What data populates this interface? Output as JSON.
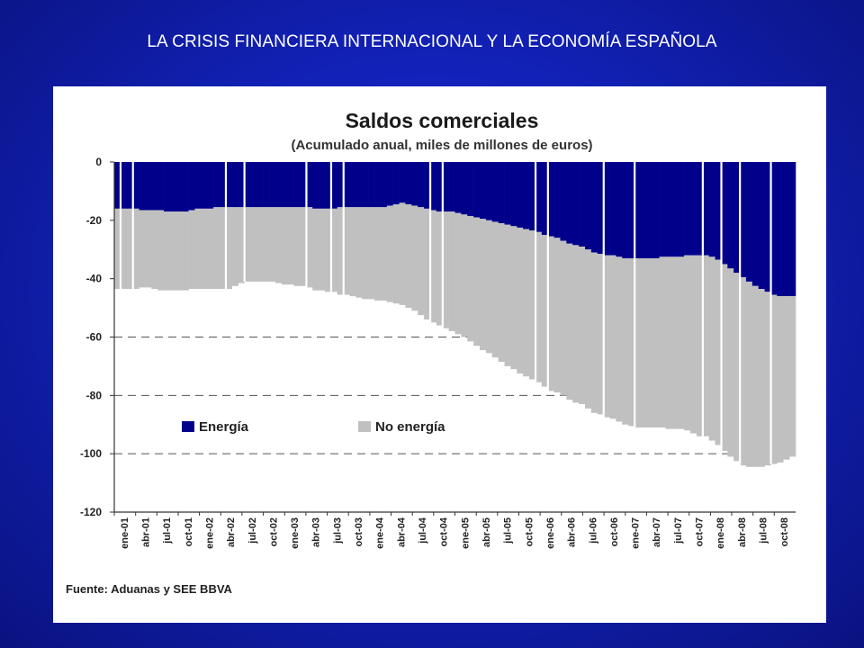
{
  "slide": {
    "title": "LA CRISIS FINANCIERA INTERNACIONAL  Y LA ECONOMÍA ESPAÑOLA"
  },
  "chart_data": {
    "type": "bar",
    "stacked": true,
    "title": "Saldos comerciales",
    "subtitle": "(Acumulado anual, miles de millones de euros)",
    "source": "Fuente: Aduanas y SEE BBVA",
    "ylim": [
      -120,
      0
    ],
    "yticks": [
      0,
      -20,
      -40,
      -60,
      -80,
      -100,
      -120
    ],
    "grid": "dashed at -60, -80, -100",
    "legend_position": "inside-lower-left",
    "colors": {
      "energy": "#00008b",
      "non_energy": "#c0c0c0",
      "separator": "#ffffff"
    },
    "xtick_labels": [
      "ene-01",
      "abr-01",
      "jul-01",
      "oct-01",
      "ene-02",
      "abr-02",
      "jul-02",
      "oct-02",
      "ene-03",
      "abr-03",
      "jul-03",
      "oct-03",
      "ene-04",
      "abr-04",
      "jul-04",
      "oct-04",
      "ene-05",
      "abr-05",
      "jul-05",
      "oct-05",
      "ene-06",
      "abr-06",
      "jul-06",
      "oct-06",
      "ene-07",
      "abr-07",
      "jul-07",
      "oct-07",
      "ene-08",
      "abr-08",
      "jul-08",
      "oct-08"
    ],
    "series": [
      {
        "name": "Energía",
        "values": [
          -16,
          -16,
          -16,
          -16,
          -16.5,
          -16.5,
          -16.5,
          -16.5,
          -17,
          -17,
          -17,
          -17,
          -16.5,
          -16,
          -16,
          -16,
          -15.5,
          -15.5,
          -15.5,
          -15.5,
          -15.5,
          -15.5,
          -15.5,
          -15.5,
          -15.5,
          -15.5,
          -15.5,
          -15.5,
          -15.5,
          -15.5,
          -15.5,
          -15.5,
          -16,
          -16,
          -16,
          -16,
          -15.5,
          -15.5,
          -15.5,
          -15.5,
          -15.5,
          -15.5,
          -15.5,
          -15.5,
          -15,
          -14.5,
          -14,
          -14.5,
          -15,
          -15.5,
          -16,
          -16.5,
          -17,
          -17,
          -17,
          -17.5,
          -18,
          -18.5,
          -19,
          -19.5,
          -20,
          -20.5,
          -21,
          -21.5,
          -22,
          -22.5,
          -23,
          -23.5,
          -24,
          -25,
          -25.5,
          -26,
          -27,
          -28,
          -28.5,
          -29,
          -30,
          -31,
          -31.5,
          -32,
          -32,
          -32.5,
          -33,
          -33,
          -33,
          -33,
          -33,
          -33,
          -32.5,
          -32.5,
          -32.5,
          -32.5,
          -32,
          -32,
          -32,
          -32,
          -32.5,
          -33.5,
          -35,
          -36.5,
          -38,
          -39.5,
          -41,
          -42.5,
          -43.5,
          -44.5,
          -45.5,
          -46,
          -46,
          -46
        ]
      },
      {
        "name": "No energía",
        "values": [
          -27.5,
          -27.5,
          -27.5,
          -27.5,
          -26.5,
          -26.5,
          -27,
          -27.5,
          -27,
          -27,
          -27,
          -27,
          -27,
          -27.5,
          -27.5,
          -27.5,
          -28,
          -28,
          -28,
          -27,
          -26,
          -25.5,
          -25.5,
          -25.5,
          -25.5,
          -25.5,
          -26,
          -26.5,
          -26.5,
          -27,
          -27,
          -27.5,
          -28,
          -28,
          -28.5,
          -28.5,
          -30,
          -30,
          -30.5,
          -31,
          -31.5,
          -31.5,
          -32,
          -32,
          -33,
          -34,
          -35,
          -35.5,
          -36,
          -37,
          -38,
          -38.5,
          -39,
          -40,
          -41,
          -41.5,
          -42,
          -43,
          -44,
          -45,
          -45.5,
          -46.5,
          -47.5,
          -48.5,
          -49,
          -50,
          -50.5,
          -51,
          -51.5,
          -52,
          -53,
          -53,
          -53,
          -53.5,
          -54,
          -54,
          -54.5,
          -55,
          -55,
          -55.5,
          -56,
          -56.5,
          -57,
          -57.5,
          -58,
          -58,
          -58,
          -58,
          -58.5,
          -59,
          -59,
          -59,
          -60,
          -61,
          -62,
          -62,
          -63,
          -63.5,
          -64,
          -64.5,
          -64.5,
          -64.5,
          -63.5,
          -62,
          -61,
          -59.5,
          -58,
          -57,
          -56,
          -55
        ]
      }
    ]
  }
}
